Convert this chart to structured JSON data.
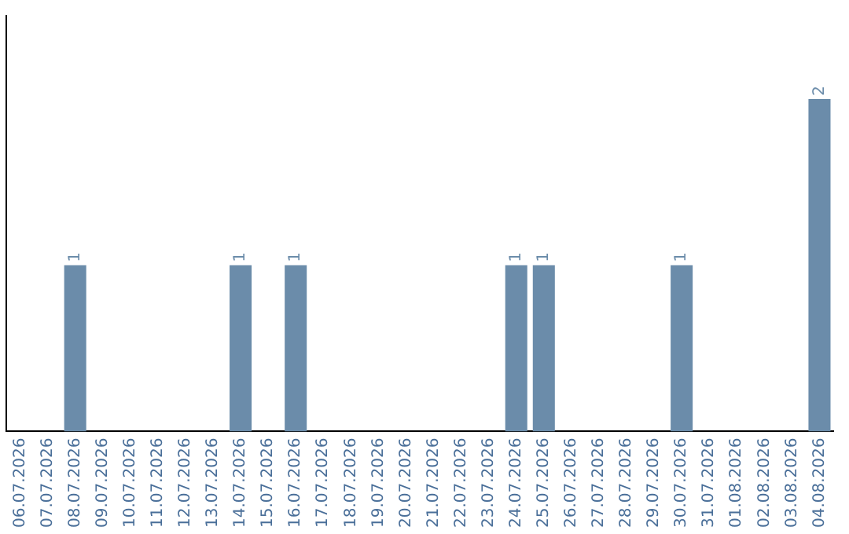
{
  "chart_data": {
    "type": "bar",
    "categories": [
      "06.07.2026",
      "07.07.2026",
      "08.07.2026",
      "09.07.2026",
      "10.07.2026",
      "11.07.2026",
      "12.07.2026",
      "13.07.2026",
      "14.07.2026",
      "15.07.2026",
      "16.07.2026",
      "17.07.2026",
      "18.07.2026",
      "19.07.2026",
      "20.07.2026",
      "21.07.2026",
      "22.07.2026",
      "23.07.2026",
      "24.07.2026",
      "25.07.2026",
      "26.07.2026",
      "27.07.2026",
      "28.07.2026",
      "29.07.2026",
      "30.07.2026",
      "31.07.2026",
      "01.08.2026",
      "02.08.2026",
      "03.08.2026",
      "04.08.2026"
    ],
    "values": [
      0,
      0,
      1,
      0,
      0,
      0,
      0,
      0,
      1,
      0,
      1,
      0,
      0,
      0,
      0,
      0,
      0,
      0,
      1,
      1,
      0,
      0,
      0,
      0,
      1,
      0,
      0,
      0,
      0,
      2
    ],
    "value_labels": [
      null,
      null,
      "1",
      null,
      null,
      null,
      null,
      null,
      "1",
      null,
      "1",
      null,
      null,
      null,
      null,
      null,
      null,
      null,
      "1",
      "1",
      null,
      null,
      null,
      null,
      "1",
      null,
      null,
      null,
      null,
      "2"
    ],
    "color": "#6b8caa",
    "tick_labels": "x",
    "grid": false,
    "legend": false
  }
}
